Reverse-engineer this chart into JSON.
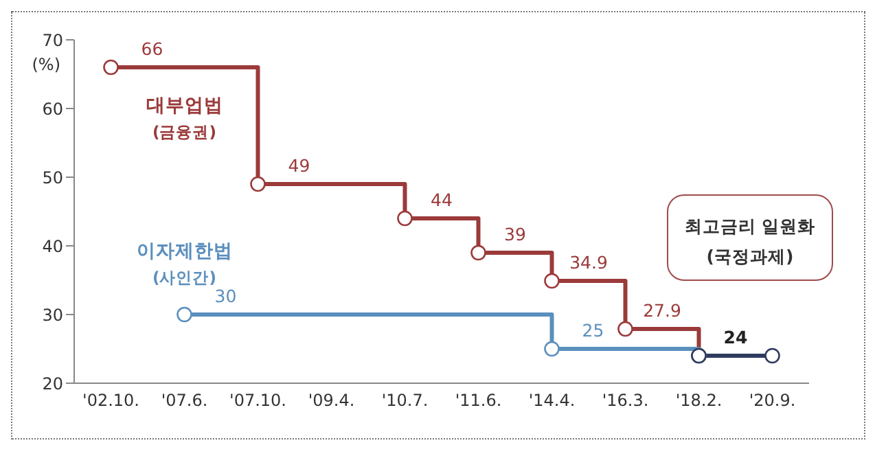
{
  "chart_data": {
    "type": "step",
    "ylabel": "(%)",
    "categories": [
      "'02.10.",
      "'07.6.",
      "'07.10.",
      "'09.4.",
      "'10.7.",
      "'11.6.",
      "'14.4.",
      "'16.3.",
      "'18.2.",
      "'20.9."
    ],
    "series": [
      {
        "name": "대부업법 (금융권)",
        "color": "#9b3a3a",
        "values": [
          66,
          null,
          49,
          null,
          44,
          39,
          34.9,
          27.9,
          24,
          null
        ],
        "value_labels": [
          "66",
          null,
          "49",
          null,
          "44",
          "39",
          "34.9",
          "27.9",
          null,
          null
        ]
      },
      {
        "name": "이자제한법 (사인간)",
        "color": "#5b8fbd",
        "values": [
          null,
          30,
          null,
          null,
          null,
          null,
          25,
          null,
          24,
          null
        ],
        "value_labels": [
          null,
          "30",
          null,
          null,
          null,
          null,
          "25",
          null,
          null,
          null
        ]
      },
      {
        "color": "#2f3b5e",
        "values": [
          null,
          null,
          null,
          null,
          null,
          null,
          null,
          null,
          24,
          24
        ],
        "value_labels": [
          null,
          null,
          null,
          null,
          null,
          null,
          null,
          null,
          "24",
          null
        ]
      }
    ],
    "ylim": [
      20,
      70
    ],
    "yticks": [
      20,
      30,
      40,
      50,
      60,
      70
    ],
    "marker": "circle",
    "line_style": "solid",
    "annotations": [
      "최고금리 일원화\n(국정과제)"
    ]
  }
}
